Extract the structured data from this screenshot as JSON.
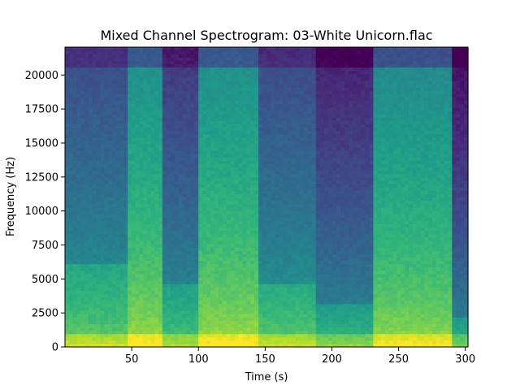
{
  "chart_data": {
    "type": "heatmap",
    "title": "Mixed Channel Spectrogram: 03-White Unicorn.flac",
    "xlabel": "Time (s)",
    "ylabel": "Frequency (Hz)",
    "xlim": [
      0,
      302
    ],
    "ylim": [
      0,
      22050
    ],
    "xticks": [
      50,
      100,
      150,
      200,
      250,
      300
    ],
    "yticks": [
      0,
      2500,
      5000,
      7500,
      10000,
      12500,
      15000,
      17500,
      20000
    ],
    "colormap": "viridis",
    "grid": false,
    "segments": [
      {
        "start": 0,
        "end": 47,
        "energy": 0.7,
        "rolloff_hz": 6000
      },
      {
        "start": 47,
        "end": 73,
        "energy": 0.95,
        "rolloff_hz": 20500
      },
      {
        "start": 73,
        "end": 100,
        "energy": 0.58,
        "rolloff_hz": 4500
      },
      {
        "start": 100,
        "end": 145,
        "energy": 0.95,
        "rolloff_hz": 20500
      },
      {
        "start": 145,
        "end": 188,
        "energy": 0.68,
        "rolloff_hz": 4500
      },
      {
        "start": 188,
        "end": 231,
        "energy": 0.45,
        "rolloff_hz": 3000
      },
      {
        "start": 231,
        "end": 290,
        "energy": 0.9,
        "rolloff_hz": 20500
      },
      {
        "start": 290,
        "end": 302,
        "energy": 0.35,
        "rolloff_hz": 2000
      }
    ]
  }
}
